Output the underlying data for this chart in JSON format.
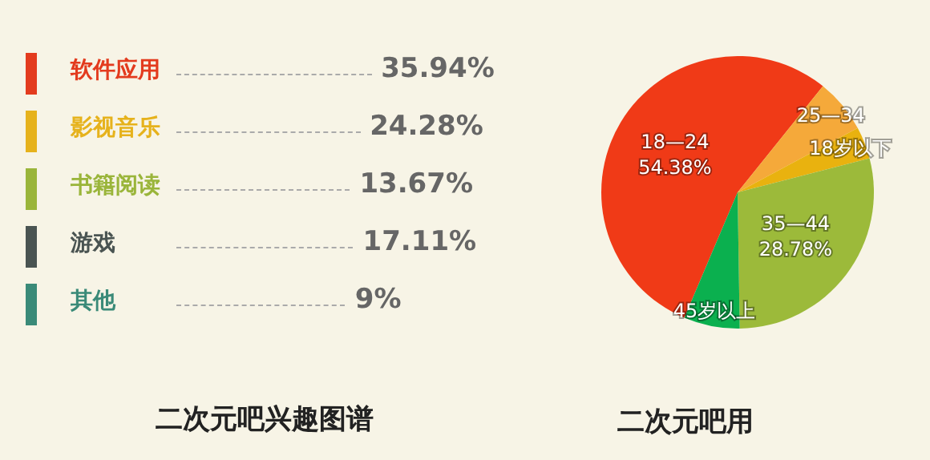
{
  "chart_data": [
    {
      "type": "other",
      "title": "二次元吧兴趣图谱",
      "categories": [
        "软件应用",
        "影视音乐",
        "书籍阅读",
        "游戏",
        "其他"
      ],
      "values": [
        35.94,
        24.28,
        13.67,
        17.11,
        9
      ],
      "value_labels": [
        "35.94%",
        "24.28%",
        "13.67%",
        "17.11%",
        "9%"
      ],
      "colors": [
        "#e33b1e",
        "#e6b21c",
        "#9ab53a",
        "#4a5452",
        "#3a8a78"
      ]
    },
    {
      "type": "pie",
      "title": "二次元吧用",
      "categories": [
        "18—24",
        "25—34",
        "18岁以下",
        "35—44",
        "45岁以上"
      ],
      "values": [
        54.38,
        6.4,
        3.8,
        28.78,
        6.64
      ],
      "value_labels": [
        "54.38%",
        null,
        null,
        "28.78%",
        null
      ],
      "colors": [
        "#f03a17",
        "#f5a93a",
        "#e9b20f",
        "#9cba3a",
        "#0bb04f"
      ],
      "legend": false
    }
  ]
}
